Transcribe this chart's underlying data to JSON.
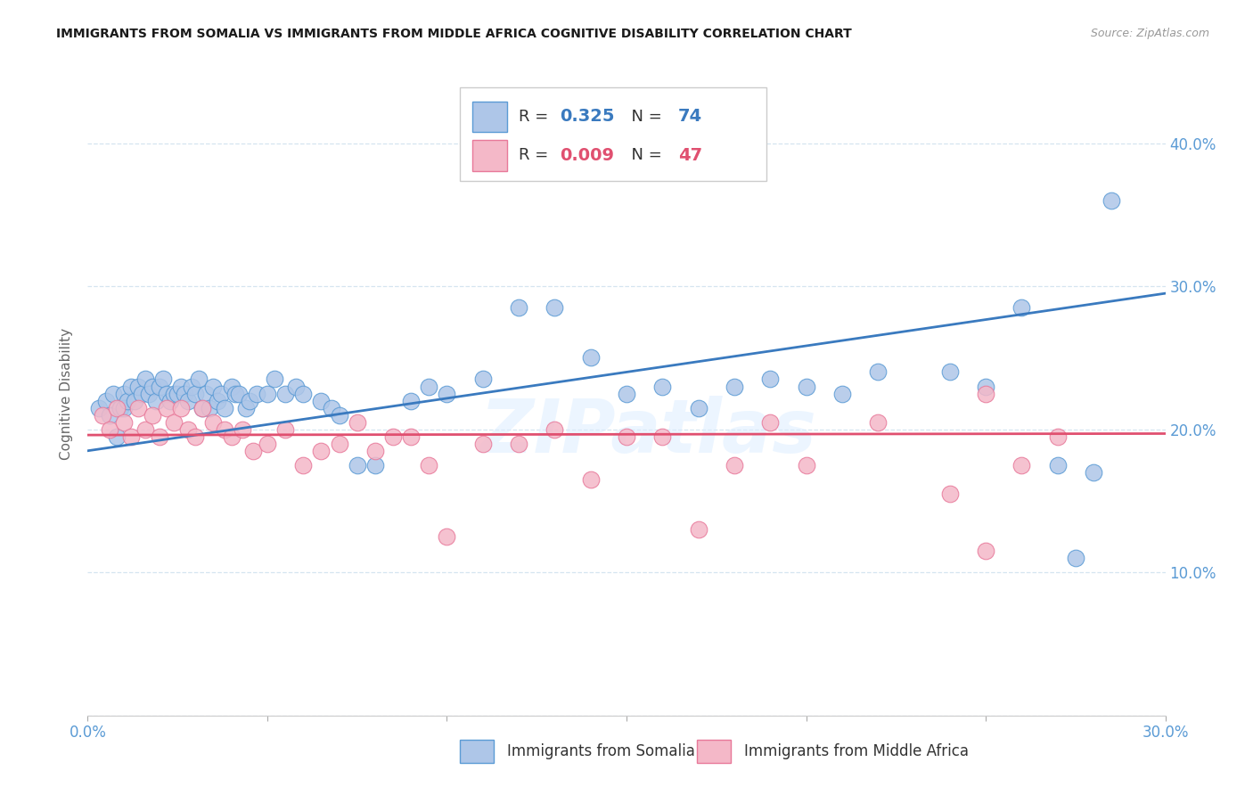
{
  "title": "IMMIGRANTS FROM SOMALIA VS IMMIGRANTS FROM MIDDLE AFRICA COGNITIVE DISABILITY CORRELATION CHART",
  "source": "Source: ZipAtlas.com",
  "xlabel_somalia": "Immigrants from Somalia",
  "xlabel_middle_africa": "Immigrants from Middle Africa",
  "ylabel": "Cognitive Disability",
  "xlim": [
    0.0,
    0.3
  ],
  "ylim": [
    0.0,
    0.45
  ],
  "xticks": [
    0.0,
    0.05,
    0.1,
    0.15,
    0.2,
    0.25,
    0.3
  ],
  "yticks": [
    0.0,
    0.1,
    0.2,
    0.3,
    0.4
  ],
  "right_ytick_labels": [
    "",
    "10.0%",
    "20.0%",
    "30.0%",
    "40.0%"
  ],
  "xtick_left_label": "0.0%",
  "xtick_right_label": "30.0%",
  "r_somalia": 0.325,
  "n_somalia": 74,
  "r_middle_africa": 0.009,
  "n_middle_africa": 47,
  "somalia_fill_color": "#aec6e8",
  "somalia_edge_color": "#5b9bd5",
  "somalia_line_color": "#3a7abf",
  "middle_africa_fill_color": "#f4b8c8",
  "middle_africa_edge_color": "#e8799a",
  "middle_africa_line_color": "#e05070",
  "watermark": "ZIPatlas",
  "grid_color": "#d5e5f0",
  "somalia_scatter_x": [
    0.003,
    0.005,
    0.006,
    0.007,
    0.008,
    0.009,
    0.01,
    0.01,
    0.011,
    0.012,
    0.013,
    0.014,
    0.015,
    0.016,
    0.017,
    0.018,
    0.019,
    0.02,
    0.021,
    0.022,
    0.023,
    0.024,
    0.025,
    0.026,
    0.027,
    0.028,
    0.029,
    0.03,
    0.031,
    0.032,
    0.033,
    0.034,
    0.035,
    0.036,
    0.037,
    0.038,
    0.04,
    0.041,
    0.042,
    0.044,
    0.045,
    0.047,
    0.05,
    0.052,
    0.055,
    0.058,
    0.06,
    0.065,
    0.068,
    0.07,
    0.075,
    0.08,
    0.09,
    0.095,
    0.1,
    0.11,
    0.12,
    0.13,
    0.14,
    0.15,
    0.16,
    0.17,
    0.18,
    0.19,
    0.2,
    0.21,
    0.22,
    0.24,
    0.25,
    0.26,
    0.27,
    0.275,
    0.28,
    0.285
  ],
  "somalia_scatter_y": [
    0.215,
    0.22,
    0.21,
    0.225,
    0.195,
    0.215,
    0.225,
    0.215,
    0.22,
    0.23,
    0.22,
    0.23,
    0.225,
    0.235,
    0.225,
    0.23,
    0.22,
    0.23,
    0.235,
    0.225,
    0.22,
    0.225,
    0.225,
    0.23,
    0.225,
    0.22,
    0.23,
    0.225,
    0.235,
    0.215,
    0.225,
    0.215,
    0.23,
    0.22,
    0.225,
    0.215,
    0.23,
    0.225,
    0.225,
    0.215,
    0.22,
    0.225,
    0.225,
    0.235,
    0.225,
    0.23,
    0.225,
    0.22,
    0.215,
    0.21,
    0.175,
    0.175,
    0.22,
    0.23,
    0.225,
    0.235,
    0.285,
    0.285,
    0.25,
    0.225,
    0.23,
    0.215,
    0.23,
    0.235,
    0.23,
    0.225,
    0.24,
    0.24,
    0.23,
    0.285,
    0.175,
    0.11,
    0.17,
    0.36
  ],
  "middle_africa_scatter_x": [
    0.004,
    0.006,
    0.008,
    0.01,
    0.012,
    0.014,
    0.016,
    0.018,
    0.02,
    0.022,
    0.024,
    0.026,
    0.028,
    0.03,
    0.032,
    0.035,
    0.038,
    0.04,
    0.043,
    0.046,
    0.05,
    0.055,
    0.06,
    0.065,
    0.07,
    0.075,
    0.08,
    0.085,
    0.09,
    0.095,
    0.1,
    0.11,
    0.12,
    0.13,
    0.14,
    0.15,
    0.16,
    0.17,
    0.18,
    0.19,
    0.2,
    0.22,
    0.24,
    0.25,
    0.26,
    0.27,
    0.25
  ],
  "middle_africa_scatter_y": [
    0.21,
    0.2,
    0.215,
    0.205,
    0.195,
    0.215,
    0.2,
    0.21,
    0.195,
    0.215,
    0.205,
    0.215,
    0.2,
    0.195,
    0.215,
    0.205,
    0.2,
    0.195,
    0.2,
    0.185,
    0.19,
    0.2,
    0.175,
    0.185,
    0.19,
    0.205,
    0.185,
    0.195,
    0.195,
    0.175,
    0.125,
    0.19,
    0.19,
    0.2,
    0.165,
    0.195,
    0.195,
    0.13,
    0.175,
    0.205,
    0.175,
    0.205,
    0.155,
    0.225,
    0.175,
    0.195,
    0.115
  ],
  "somalia_line_x0": 0.0,
  "somalia_line_y0": 0.185,
  "somalia_line_x1": 0.3,
  "somalia_line_y1": 0.295,
  "middle_africa_line_x0": 0.0,
  "middle_africa_line_y0": 0.196,
  "middle_africa_line_x1": 0.3,
  "middle_africa_line_y1": 0.197
}
